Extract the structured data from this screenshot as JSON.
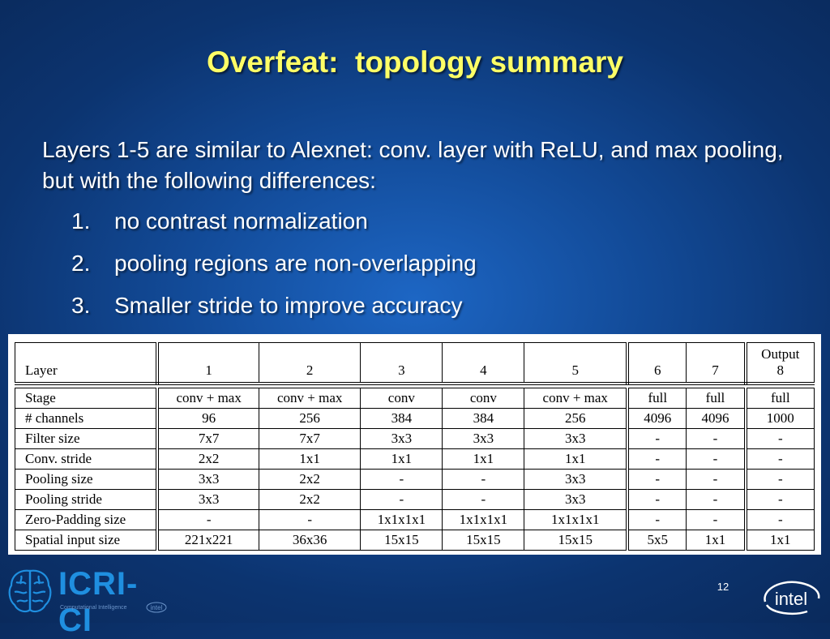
{
  "slide": {
    "title": "Overfeat:  topology summary",
    "intro": "Layers 1-5 are similar to Alexnet: conv. layer with ReLU, and max pooling, but with the following differences:",
    "points": [
      {
        "num": "1.",
        "text": "no contrast normalization"
      },
      {
        "num": "2.",
        "text": "pooling regions are non-overlapping"
      },
      {
        "num": "3.",
        "text": "Smaller stride to improve accuracy"
      }
    ],
    "page_number": "12"
  },
  "table": {
    "header": {
      "label": "Layer",
      "cols": [
        "1",
        "2",
        "3",
        "4",
        "5",
        "6",
        "7"
      ],
      "last_top": "Output",
      "last_bottom": "8"
    },
    "rows": [
      {
        "label": "Stage",
        "cells": [
          "conv + max",
          "conv + max",
          "conv",
          "conv",
          "conv + max",
          "full",
          "full",
          "full"
        ]
      },
      {
        "label": "# channels",
        "cells": [
          "96",
          "256",
          "384",
          "384",
          "256",
          "4096",
          "4096",
          "1000"
        ]
      },
      {
        "label": "Filter size",
        "cells": [
          "7x7",
          "7x7",
          "3x3",
          "3x3",
          "3x3",
          "-",
          "-",
          "-"
        ]
      },
      {
        "label": "Conv. stride",
        "cells": [
          "2x2",
          "1x1",
          "1x1",
          "1x1",
          "1x1",
          "-",
          "-",
          "-"
        ]
      },
      {
        "label": "Pooling size",
        "cells": [
          "3x3",
          "2x2",
          "-",
          "-",
          "3x3",
          "-",
          "-",
          "-"
        ]
      },
      {
        "label": "Pooling stride",
        "cells": [
          "3x3",
          "2x2",
          "-",
          "-",
          "3x3",
          "-",
          "-",
          "-"
        ]
      },
      {
        "label": "Zero-Padding size",
        "cells": [
          "-",
          "-",
          "1x1x1x1",
          "1x1x1x1",
          "1x1x1x1",
          "-",
          "-",
          "-"
        ]
      },
      {
        "label": "Spatial input size",
        "cells": [
          "221x221",
          "36x36",
          "15x15",
          "15x15",
          "15x15",
          "5x5",
          "1x1",
          "1x1"
        ]
      }
    ]
  },
  "footer": {
    "left_logo_text": "ICRI-CI",
    "left_logo_sub": "Computational Intelligence",
    "left_logo_sub_intel": "intel",
    "right_logo_text": "intel",
    "accent_color": "#ffff66",
    "logo_color": "#1f8fe0",
    "left_logo_icon": "brain-icon"
  }
}
